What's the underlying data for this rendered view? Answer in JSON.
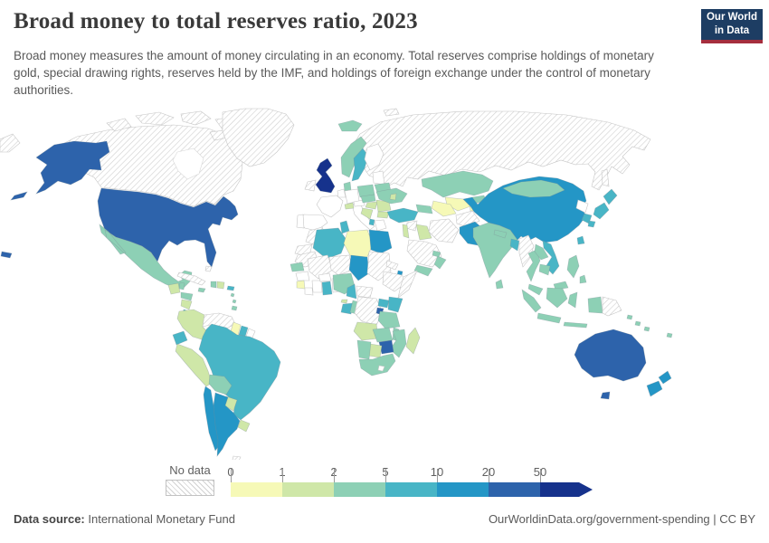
{
  "header": {
    "title": "Broad money to total reserves ratio, 2023",
    "subtitle": "Broad money measures the amount of money circulating in an economy. Total reserves comprise holdings of monetary gold, special drawing rights, reserves held by the IMF, and holdings of foreign exchange under the control of monetary authorities.",
    "logo_line1": "Our World",
    "logo_line2": "in Data",
    "logo_bg": "#1d3d63",
    "logo_accent": "#a52e3e"
  },
  "legend": {
    "no_data_label": "No data",
    "ticks": [
      "0",
      "1",
      "2",
      "5",
      "10",
      "20",
      "50"
    ]
  },
  "footer": {
    "source_label": "Data source:",
    "source_value": "International Monetary Fund",
    "credit": "OurWorldinData.org/government-spending | CC BY"
  },
  "chart_data": {
    "type": "choropleth_map",
    "title": "Broad money to total reserves ratio, 2023",
    "unit": "ratio",
    "legend_position": "bottom",
    "no_data_style": "diagonal-hatch",
    "bins": [
      {
        "label": "0-1",
        "color": "#f6f9b7"
      },
      {
        "label": "1-2",
        "color": "#cfe7a8"
      },
      {
        "label": "2-5",
        "color": "#8dd0b5"
      },
      {
        "label": "5-10",
        "color": "#48b5c6"
      },
      {
        "label": "10-20",
        "color": "#2496c6"
      },
      {
        "label": "20-50",
        "color": "#2d63ab"
      },
      {
        "label": "50+",
        "color": "#16328c"
      }
    ],
    "regions": [
      {
        "id": "russia",
        "name": "Russia",
        "bin": "no-data"
      },
      {
        "id": "canada",
        "name": "Canada",
        "bin": "no-data"
      },
      {
        "id": "hudsonbay",
        "name": "Hudson Bay",
        "bin": "sea"
      },
      {
        "id": "arctic",
        "name": "Arctic islands",
        "bin": "no-data"
      },
      {
        "id": "greenland",
        "name": "Greenland",
        "bin": "no-data"
      },
      {
        "id": "chukotka",
        "name": "Chukotka",
        "bin": "no-data"
      },
      {
        "id": "svalbard",
        "name": "Svalbard",
        "bin": "no-data"
      },
      {
        "id": "usa",
        "name": "United States",
        "bin": "20-50"
      },
      {
        "id": "mexico",
        "name": "Mexico",
        "bin": "2-5"
      },
      {
        "id": "guatemala",
        "name": "Guatemala",
        "bin": "1-2"
      },
      {
        "id": "belize",
        "name": "Belize",
        "bin": "2-5"
      },
      {
        "id": "honduras",
        "name": "Honduras",
        "bin": "2-5"
      },
      {
        "id": "nicaragua",
        "name": "Nicaragua",
        "bin": "1-2"
      },
      {
        "id": "costarica",
        "name": "Costa Rica",
        "bin": "5-10"
      },
      {
        "id": "panama",
        "name": "Panama",
        "bin": "2-5"
      },
      {
        "id": "cuba",
        "name": "Cuba",
        "bin": "no-data"
      },
      {
        "id": "jamaica",
        "name": "Jamaica",
        "bin": "2-5"
      },
      {
        "id": "haiti",
        "name": "Haiti",
        "bin": "2-5"
      },
      {
        "id": "domrep",
        "name": "Dominican Republic",
        "bin": "1-2"
      },
      {
        "id": "puertorico",
        "name": "Puerto Rico",
        "bin": "5-10"
      },
      {
        "id": "bahamas",
        "name": "Bahamas",
        "bin": "no-data"
      },
      {
        "id": "lesserantilles",
        "name": "Lesser Antilles",
        "bin": "2-5"
      },
      {
        "id": "trinidad",
        "name": "Trinidad and Tobago",
        "bin": "2-5"
      },
      {
        "id": "colombia",
        "name": "Colombia",
        "bin": "1-2"
      },
      {
        "id": "venezuela",
        "name": "Venezuela",
        "bin": "no-data"
      },
      {
        "id": "guyana",
        "name": "Guyana",
        "bin": "0-1"
      },
      {
        "id": "suriname",
        "name": "Suriname",
        "bin": "5-10"
      },
      {
        "id": "frguiana",
        "name": "French Guiana",
        "bin": "white"
      },
      {
        "id": "ecuador",
        "name": "Ecuador",
        "bin": "5-10"
      },
      {
        "id": "peru",
        "name": "Peru",
        "bin": "1-2"
      },
      {
        "id": "brazil",
        "name": "Brazil",
        "bin": "5-10"
      },
      {
        "id": "bolivia",
        "name": "Bolivia",
        "bin": "2-5"
      },
      {
        "id": "paraguay",
        "name": "Paraguay",
        "bin": "1-2"
      },
      {
        "id": "chile",
        "name": "Chile",
        "bin": "10-20"
      },
      {
        "id": "argentina",
        "name": "Argentina",
        "bin": "10-20"
      },
      {
        "id": "uruguay",
        "name": "Uruguay",
        "bin": "1-2"
      },
      {
        "id": "falklands",
        "name": "Falkland Islands",
        "bin": "no-data"
      },
      {
        "id": "iceland",
        "name": "Iceland",
        "bin": "2-5"
      },
      {
        "id": "uk",
        "name": "United Kingdom",
        "bin": "50+"
      },
      {
        "id": "ireland",
        "name": "Ireland",
        "bin": "no-data"
      },
      {
        "id": "norway",
        "name": "Norway",
        "bin": "2-5"
      },
      {
        "id": "sweden",
        "name": "Sweden",
        "bin": "5-10"
      },
      {
        "id": "finland",
        "name": "Finland",
        "bin": "white"
      },
      {
        "id": "denmark",
        "name": "Denmark",
        "bin": "2-5"
      },
      {
        "id": "baltics",
        "name": "Baltic states",
        "bin": "white"
      },
      {
        "id": "belarus",
        "name": "Belarus",
        "bin": "2-5"
      },
      {
        "id": "poland",
        "name": "Poland",
        "bin": "2-5"
      },
      {
        "id": "germany",
        "name": "Germany",
        "bin": "white"
      },
      {
        "id": "benelux",
        "name": "Benelux",
        "bin": "white"
      },
      {
        "id": "france",
        "name": "France",
        "bin": "white"
      },
      {
        "id": "spain",
        "name": "Spain",
        "bin": "white"
      },
      {
        "id": "portugal",
        "name": "Portugal",
        "bin": "white"
      },
      {
        "id": "italy",
        "name": "Italy",
        "bin": "white"
      },
      {
        "id": "swiss",
        "name": "Switzerland",
        "bin": "1-2"
      },
      {
        "id": "austria",
        "name": "Austria",
        "bin": "white"
      },
      {
        "id": "czech",
        "name": "Czechia and Slovakia",
        "bin": "2-5"
      },
      {
        "id": "hungary",
        "name": "Hungary",
        "bin": "1-2"
      },
      {
        "id": "romania",
        "name": "Romania",
        "bin": "1-2"
      },
      {
        "id": "balkans",
        "name": "Western Balkans",
        "bin": "1-2"
      },
      {
        "id": "albania",
        "name": "Albania",
        "bin": "5-10"
      },
      {
        "id": "greece",
        "name": "Greece",
        "bin": "white"
      },
      {
        "id": "bulgaria",
        "name": "Bulgaria",
        "bin": "1-2"
      },
      {
        "id": "ukraine",
        "name": "Ukraine",
        "bin": "2-5"
      },
      {
        "id": "moldova",
        "name": "Moldova",
        "bin": "1-2"
      },
      {
        "id": "sakhalin",
        "name": "Sakhalin",
        "bin": "no-data"
      },
      {
        "id": "turkey",
        "name": "Turkey",
        "bin": "5-10"
      },
      {
        "id": "syria",
        "name": "Syria",
        "bin": "no-data"
      },
      {
        "id": "levant",
        "name": "Israel and Jordan",
        "bin": "1-2"
      },
      {
        "id": "iraq",
        "name": "Iraq",
        "bin": "1-2"
      },
      {
        "id": "caucasus",
        "name": "Caucasus",
        "bin": "2-5"
      },
      {
        "id": "iran",
        "name": "Iran",
        "bin": "no-data"
      },
      {
        "id": "saudi",
        "name": "Saudi Arabia",
        "bin": "no-data"
      },
      {
        "id": "yemen",
        "name": "Yemen",
        "bin": "2-5"
      },
      {
        "id": "oman",
        "name": "Oman",
        "bin": "2-5"
      },
      {
        "id": "uae",
        "name": "United Arab Emirates",
        "bin": "2-5"
      },
      {
        "id": "kazakhstan",
        "name": "Kazakhstan",
        "bin": "2-5"
      },
      {
        "id": "uzbekistan",
        "name": "Uzbekistan",
        "bin": "0-1"
      },
      {
        "id": "turkmenistan",
        "name": "Turkmenistan",
        "bin": "0-1"
      },
      {
        "id": "kyrgyzstan",
        "name": "Kyrgyzstan",
        "bin": "2-5"
      },
      {
        "id": "tajikistan",
        "name": "Tajikistan",
        "bin": "0-1"
      },
      {
        "id": "afghanistan",
        "name": "Afghanistan",
        "bin": "no-data"
      },
      {
        "id": "pakistan",
        "name": "Pakistan",
        "bin": "10-20"
      },
      {
        "id": "india",
        "name": "India",
        "bin": "2-5"
      },
      {
        "id": "china",
        "name": "China",
        "bin": "10-20"
      },
      {
        "id": "mongolia",
        "name": "Mongolia",
        "bin": "2-5"
      },
      {
        "id": "nepal",
        "name": "Nepal",
        "bin": "2-5"
      },
      {
        "id": "bangladesh",
        "name": "Bangladesh",
        "bin": "5-10"
      },
      {
        "id": "srilanka",
        "name": "Sri Lanka",
        "bin": "2-5"
      },
      {
        "id": "northkorea",
        "name": "North Korea",
        "bin": "white"
      },
      {
        "id": "southkorea",
        "name": "South Korea",
        "bin": "5-10"
      },
      {
        "id": "japan",
        "name": "Japan",
        "bin": "5-10"
      },
      {
        "id": "taiwan",
        "name": "Taiwan",
        "bin": "5-10"
      },
      {
        "id": "myanmar",
        "name": "Myanmar",
        "bin": "no-data"
      },
      {
        "id": "thailand",
        "name": "Thailand",
        "bin": "2-5"
      },
      {
        "id": "laos",
        "name": "Laos",
        "bin": "2-5"
      },
      {
        "id": "vietnam",
        "name": "Vietnam",
        "bin": "5-10"
      },
      {
        "id": "cambodia",
        "name": "Cambodia",
        "bin": "2-5"
      },
      {
        "id": "malaysia",
        "name": "Malaysia",
        "bin": "2-5"
      },
      {
        "id": "indonesia",
        "name": "Indonesia",
        "bin": "2-5"
      },
      {
        "id": "png",
        "name": "Papua New Guinea",
        "bin": "no-data"
      },
      {
        "id": "philippines",
        "name": "Philippines",
        "bin": "2-5"
      },
      {
        "id": "pacific",
        "name": "Pacific islands",
        "bin": "2-5"
      },
      {
        "id": "australia",
        "name": "Australia",
        "bin": "20-50"
      },
      {
        "id": "newzealand",
        "name": "New Zealand",
        "bin": "10-20"
      },
      {
        "id": "morocco",
        "name": "Morocco",
        "bin": "no-data"
      },
      {
        "id": "wsahara",
        "name": "Western Sahara",
        "bin": "no-data"
      },
      {
        "id": "algeria",
        "name": "Algeria",
        "bin": "5-10"
      },
      {
        "id": "tunisia",
        "name": "Tunisia",
        "bin": "5-10"
      },
      {
        "id": "libya",
        "name": "Libya",
        "bin": "0-1"
      },
      {
        "id": "egypt",
        "name": "Egypt",
        "bin": "10-20"
      },
      {
        "id": "mauritania",
        "name": "Mauritania",
        "bin": "no-data"
      },
      {
        "id": "senegal",
        "name": "Senegal",
        "bin": "2-5"
      },
      {
        "id": "guinea",
        "name": "Guinea",
        "bin": "white"
      },
      {
        "id": "sierraleone",
        "name": "Sierra Leone",
        "bin": "0-1"
      },
      {
        "id": "liberia",
        "name": "Liberia",
        "bin": "white"
      },
      {
        "id": "ivorycoast",
        "name": "Cote d'Ivoire",
        "bin": "white"
      },
      {
        "id": "mali",
        "name": "Mali",
        "bin": "no-data"
      },
      {
        "id": "burkina",
        "name": "Burkina Faso",
        "bin": "white"
      },
      {
        "id": "ghana",
        "name": "Ghana",
        "bin": "5-10"
      },
      {
        "id": "togobenin",
        "name": "Togo and Benin",
        "bin": "white"
      },
      {
        "id": "niger",
        "name": "Niger",
        "bin": "no-data"
      },
      {
        "id": "nigeria",
        "name": "Nigeria",
        "bin": "2-5"
      },
      {
        "id": "chad",
        "name": "Chad",
        "bin": "10-20"
      },
      {
        "id": "sudan",
        "name": "Sudan",
        "bin": "no-data"
      },
      {
        "id": "eritrea",
        "name": "Eritrea",
        "bin": "no-data"
      },
      {
        "id": "djibouti",
        "name": "Djibouti",
        "bin": "10-20"
      },
      {
        "id": "ethiopia",
        "name": "Ethiopia",
        "bin": "no-data"
      },
      {
        "id": "somalia",
        "name": "Somalia",
        "bin": "no-data"
      },
      {
        "id": "cameroon",
        "name": "Cameroon",
        "bin": "5-10"
      },
      {
        "id": "car",
        "name": "Central African Republic",
        "bin": "no-data"
      },
      {
        "id": "eqguinea",
        "name": "Equatorial Guinea",
        "bin": "1-2"
      },
      {
        "id": "gabon",
        "name": "Gabon",
        "bin": "5-10"
      },
      {
        "id": "congo",
        "name": "Congo",
        "bin": "2-5"
      },
      {
        "id": "drc",
        "name": "Democratic Republic of Congo",
        "bin": "no-data"
      },
      {
        "id": "uganda",
        "name": "Uganda",
        "bin": "5-10"
      },
      {
        "id": "kenya",
        "name": "Kenya",
        "bin": "5-10"
      },
      {
        "id": "rwanda",
        "name": "Rwanda",
        "bin": "20-50"
      },
      {
        "id": "tanzania",
        "name": "Tanzania",
        "bin": "2-5"
      },
      {
        "id": "angola",
        "name": "Angola",
        "bin": "1-2"
      },
      {
        "id": "zambia",
        "name": "Zambia",
        "bin": "2-5"
      },
      {
        "id": "malawi",
        "name": "Malawi",
        "bin": "2-5"
      },
      {
        "id": "mozambique",
        "name": "Mozambique",
        "bin": "2-5"
      },
      {
        "id": "zimbabwe",
        "name": "Zimbabwe",
        "bin": "20-50"
      },
      {
        "id": "botswana",
        "name": "Botswana",
        "bin": "1-2"
      },
      {
        "id": "namibia",
        "name": "Namibia",
        "bin": "2-5"
      },
      {
        "id": "southafrica",
        "name": "South Africa",
        "bin": "2-5"
      },
      {
        "id": "lesotho",
        "name": "Lesotho",
        "bin": "white"
      },
      {
        "id": "madagascar",
        "name": "Madagascar",
        "bin": "1-2"
      }
    ]
  }
}
